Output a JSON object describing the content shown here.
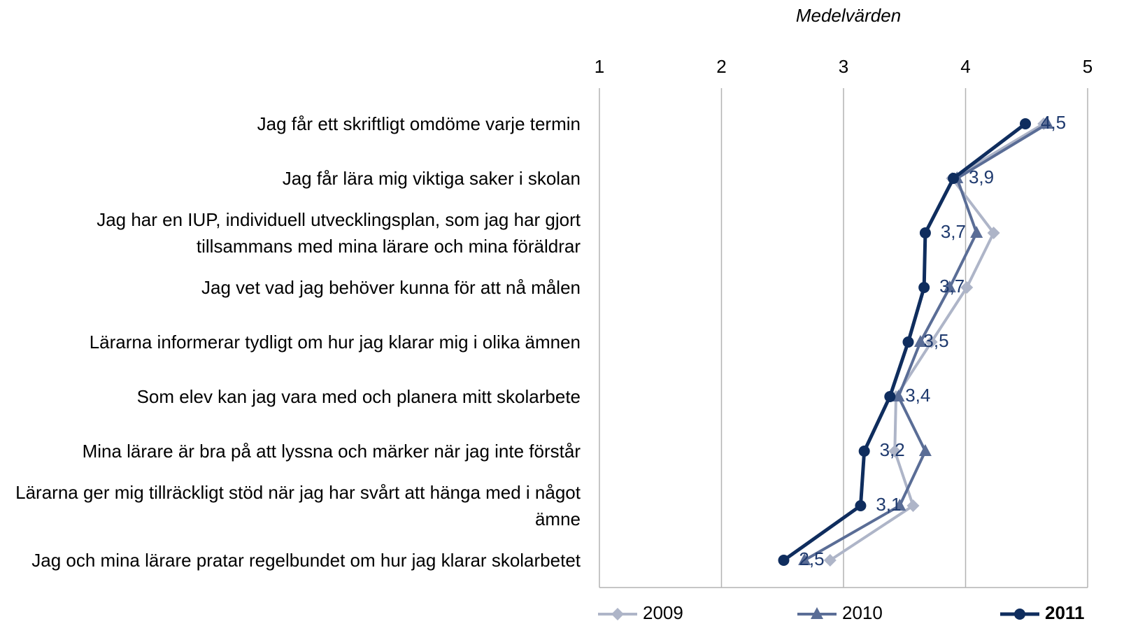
{
  "chart_data": {
    "type": "line",
    "orientation": "horizontal",
    "x_label": "Medelvärden",
    "categories": [
      "Jag får ett skriftligt omdöme varje termin",
      "Jag får lära mig viktiga saker i skolan",
      "Jag har en IUP, individuell utvecklingsplan, som jag har gjort tillsammans med mina lärare och mina föräldrar",
      "Jag vet vad jag behöver kunna för att nå målen",
      "Lärarna informerar tydligt om hur jag klarar mig i olika ämnen",
      "Som elev kan jag vara med och planera mitt skolarbete",
      "Mina lärare är bra på att lyssna och märker när jag inte förstår",
      "Lärarna ger mig tillräckligt stöd när jag har svårt att hänga med i något ämne",
      "Jag och mina lärare pratar regelbundet om hur jag klarar skolarbetet"
    ],
    "series": [
      {
        "name": "2009",
        "color": "#aeb5c8",
        "marker": "diamond",
        "values": [
          4.64,
          3.89,
          4.23,
          4.01,
          3.72,
          3.43,
          3.42,
          3.57,
          2.89
        ]
      },
      {
        "name": "2010",
        "color": "#5a6d96",
        "marker": "triangle",
        "values": [
          4.67,
          3.93,
          4.09,
          3.87,
          3.63,
          3.45,
          3.67,
          3.46,
          2.68
        ]
      },
      {
        "name": "2011",
        "color": "#0f2d5e",
        "marker": "circle",
        "values": [
          4.49,
          3.9,
          3.67,
          3.66,
          3.53,
          3.38,
          3.17,
          3.14,
          2.51
        ],
        "value_labels": [
          "4,5",
          "3,9",
          "3,7",
          "3,7",
          "3,5",
          "3,4",
          "3,2",
          "3,1",
          "2,5"
        ]
      }
    ],
    "xlim": [
      1,
      5
    ],
    "xticks": [
      1,
      2,
      3,
      4,
      5
    ],
    "grid": true,
    "legend": "bottom"
  }
}
